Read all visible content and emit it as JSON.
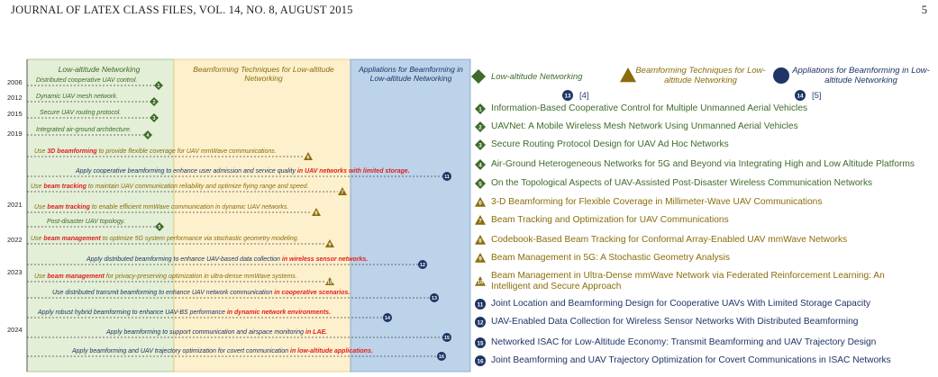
{
  "header": {
    "journal": "JOURNAL OF LATEX CLASS FILES, VOL. 14, NO. 8, AUGUST 2015",
    "page_number": "5"
  },
  "colors": {
    "green": "#3f6b2a",
    "gold": "#8a6d0b",
    "navy": "#1f3566",
    "highlight": "#e02020"
  },
  "columns": [
    {
      "label": "Low-altitude Networking"
    },
    {
      "label": "Beamforming Techniques for Low-altitude Networking"
    },
    {
      "label": "Appliations for Beamforming in Low-altitude Networking"
    }
  ],
  "years": [
    "2006",
    "2012",
    "2015",
    "2019",
    "2021",
    "2022",
    "2023",
    "2024"
  ],
  "events": [
    {
      "pre": "Distributed cooperative UAV control.",
      "hl": "",
      "post": ""
    },
    {
      "pre": "Dynamic UAV mesh network.",
      "hl": "",
      "post": ""
    },
    {
      "pre": "Secure UAV routing protocol.",
      "hl": "",
      "post": ""
    },
    {
      "pre": "Integrated air-ground architecture.",
      "hl": "",
      "post": ""
    },
    {
      "pre": "Use ",
      "hl": "3D beamforming",
      "post": " to provide flexible coverage for UAV mmWave communications."
    },
    {
      "pre": "Apply cooperative beamforming to enhance user admission and service quality ",
      "hl": "in UAV networks with limited storage.",
      "post": ""
    },
    {
      "pre": "Use ",
      "hl": "beam tracking",
      "post": " to maintain UAV communication reliability and optimize flying range and speed."
    },
    {
      "pre": "Use ",
      "hl": "beam tracking",
      "post": " to enable efficient mmWave communication in dynamic UAV networks."
    },
    {
      "pre": "Post-disaster UAV topology.",
      "hl": "",
      "post": ""
    },
    {
      "pre": "Use ",
      "hl": "beam management",
      "post": " to optimize 5G system performance via stochastic geometry modeling."
    },
    {
      "pre": "Apply distributed beamforming to enhance UAV-based data collection ",
      "hl": "in wireless sensor networks.",
      "post": ""
    },
    {
      "pre": "Use ",
      "hl": "beam management",
      "post": " for privacy-preserving optimization in ultra-dense mmWave systems."
    },
    {
      "pre": "Use distributed transmit beamforming to enhance UAV network communication ",
      "hl": "in cooperative scenarios.",
      "post": ""
    },
    {
      "pre": "Apply robust hybrid beamforming to enhance UAV-BS performance ",
      "hl": "in dynamic network environments.",
      "post": ""
    },
    {
      "pre": "Apply beamforming to support communication and airspace monitoring ",
      "hl": "in LAE.",
      "post": ""
    },
    {
      "pre": "Apply beamforming and UAV trajectory optimization for covert communication ",
      "hl": "in low-altitude applications.",
      "post": ""
    }
  ],
  "legend": [
    {
      "label": "Low-altitude Networking",
      "ref_num": "13",
      "ref_text": "[4]"
    },
    {
      "label": "Beamforming Techniques for Low-altitude Networking",
      "ref_num": "",
      "ref_text": ""
    },
    {
      "label": "Appliations for Beamforming in Low-altitude Networking",
      "ref_num": "14",
      "ref_text": "[5]"
    }
  ],
  "papers": [
    {
      "num": "1",
      "cat": "green",
      "title": "Information-Based Cooperative Control for Multiple Unmanned Aerial Vehicles"
    },
    {
      "num": "2",
      "cat": "green",
      "title": "UAVNet: A Mobile Wireless Mesh Network Using Unmanned Aerial Vehicles"
    },
    {
      "num": "3",
      "cat": "green",
      "title": "Secure Routing Protocol Design for UAV Ad Hoc Networks"
    },
    {
      "num": "4",
      "cat": "green",
      "title": "Air-Ground Heterogeneous Networks for 5G and Beyond via Integrating High and Low Altitude Platforms"
    },
    {
      "num": "5",
      "cat": "green",
      "title": "On the Topological Aspects of UAV-Assisted Post-Disaster Wireless Communication Networks"
    },
    {
      "num": "6",
      "cat": "gold",
      "title": "3-D Beamforming for Flexible Coverage in Millimeter-Wave UAV Communications"
    },
    {
      "num": "7",
      "cat": "gold",
      "title": "Beam Tracking and Optimization for UAV Communications"
    },
    {
      "num": "8",
      "cat": "gold",
      "title": "Codebook-Based Beam Tracking for Conformal Array-Enabled UAV mmWave Networks"
    },
    {
      "num": "9",
      "cat": "gold",
      "title": "Beam Management in 5G: A Stochastic Geometry Analysis"
    },
    {
      "num": "10",
      "cat": "gold",
      "title": "Beam Management in Ultra-Dense mmWave Network via Federated Reinforcement Learning: An Intelligent and Secure Approach"
    },
    {
      "num": "11",
      "cat": "navy",
      "title": "Joint Location and Beamforming Design for Cooperative UAVs With Limited Storage Capacity"
    },
    {
      "num": "12",
      "cat": "navy",
      "title": "UAV-Enabled Data Collection for Wireless Sensor Networks With Distributed Beamforming"
    },
    {
      "num": "15",
      "cat": "navy",
      "title": "Networked ISAC for Low-Altitude Economy: Transmit Beamforming and UAV Trajectory Design"
    },
    {
      "num": "16",
      "cat": "navy",
      "title": "Joint Beamforming and UAV Trajectory Optimization for Covert Communications in ISAC Networks"
    }
  ],
  "markers": [
    {
      "num": "1",
      "cat": "green"
    },
    {
      "num": "2",
      "cat": "green"
    },
    {
      "num": "3",
      "cat": "green"
    },
    {
      "num": "4",
      "cat": "green"
    },
    {
      "num": "6",
      "cat": "gold"
    },
    {
      "num": "11",
      "cat": "navy"
    },
    {
      "num": "7",
      "cat": "gold"
    },
    {
      "num": "8",
      "cat": "gold"
    },
    {
      "num": "5",
      "cat": "green"
    },
    {
      "num": "9",
      "cat": "gold"
    },
    {
      "num": "12",
      "cat": "navy"
    },
    {
      "num": "10",
      "cat": "gold"
    },
    {
      "num": "13",
      "cat": "navy"
    },
    {
      "num": "14",
      "cat": "navy"
    },
    {
      "num": "15",
      "cat": "navy"
    },
    {
      "num": "16",
      "cat": "navy"
    }
  ]
}
